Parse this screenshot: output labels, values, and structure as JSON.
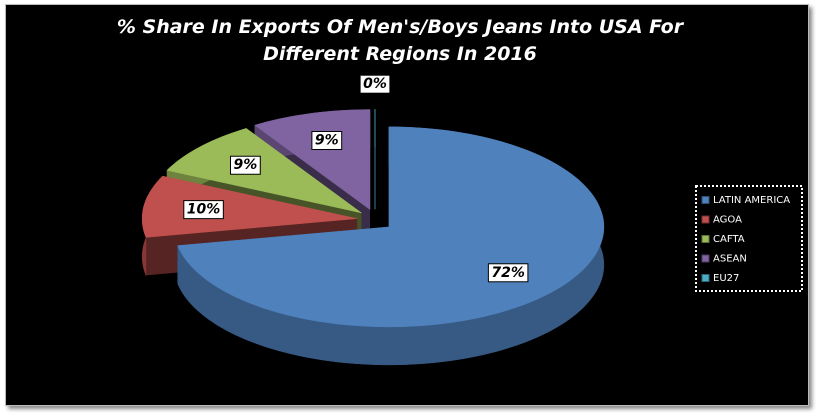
{
  "chart_data": {
    "type": "pie",
    "title": "% Share In Exports Of Men's/Boys Jeans Into USA For Different Regions In 2016",
    "categories": [
      "LATIN AMERICA",
      "AGOA",
      "CAFTA",
      "ASEAN",
      "EU27"
    ],
    "values": [
      72,
      10,
      9,
      9,
      0
    ],
    "value_labels": [
      "72%",
      "10%",
      "9%",
      "9%",
      "0%"
    ],
    "colors": [
      "#4f81bd",
      "#c0504d",
      "#9bbb59",
      "#8064a2",
      "#4bacc6"
    ],
    "legend": "right"
  }
}
